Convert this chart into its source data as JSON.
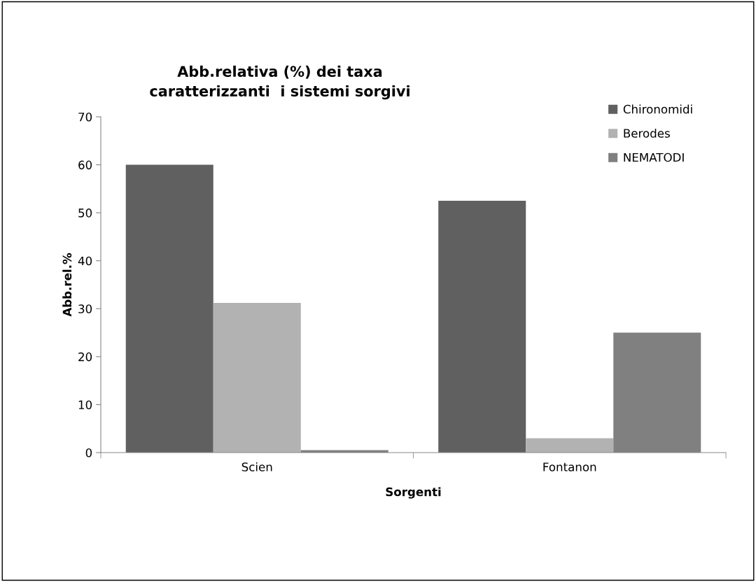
{
  "chart_data": {
    "type": "bar",
    "title": "Abb.relativa (%) dei taxa\ncaratterizzanti  i sistemi sorgivi",
    "xlabel": "Sorgenti",
    "ylabel": "Abb.rel.%",
    "categories": [
      "Scien",
      "Fontanon"
    ],
    "series": [
      {
        "name": "Chironomidi",
        "color": "#606060",
        "values": [
          60,
          52.5
        ]
      },
      {
        "name": "Berodes",
        "color": "#b2b2b2",
        "values": [
          31.2,
          3
        ]
      },
      {
        "name": "NEMATODI",
        "color": "#808080",
        "values": [
          0.5,
          25
        ]
      }
    ],
    "ylim": [
      0,
      70
    ],
    "yticks": [
      0,
      10,
      20,
      30,
      40,
      50,
      60,
      70
    ],
    "grid": false,
    "legend": "top right"
  }
}
